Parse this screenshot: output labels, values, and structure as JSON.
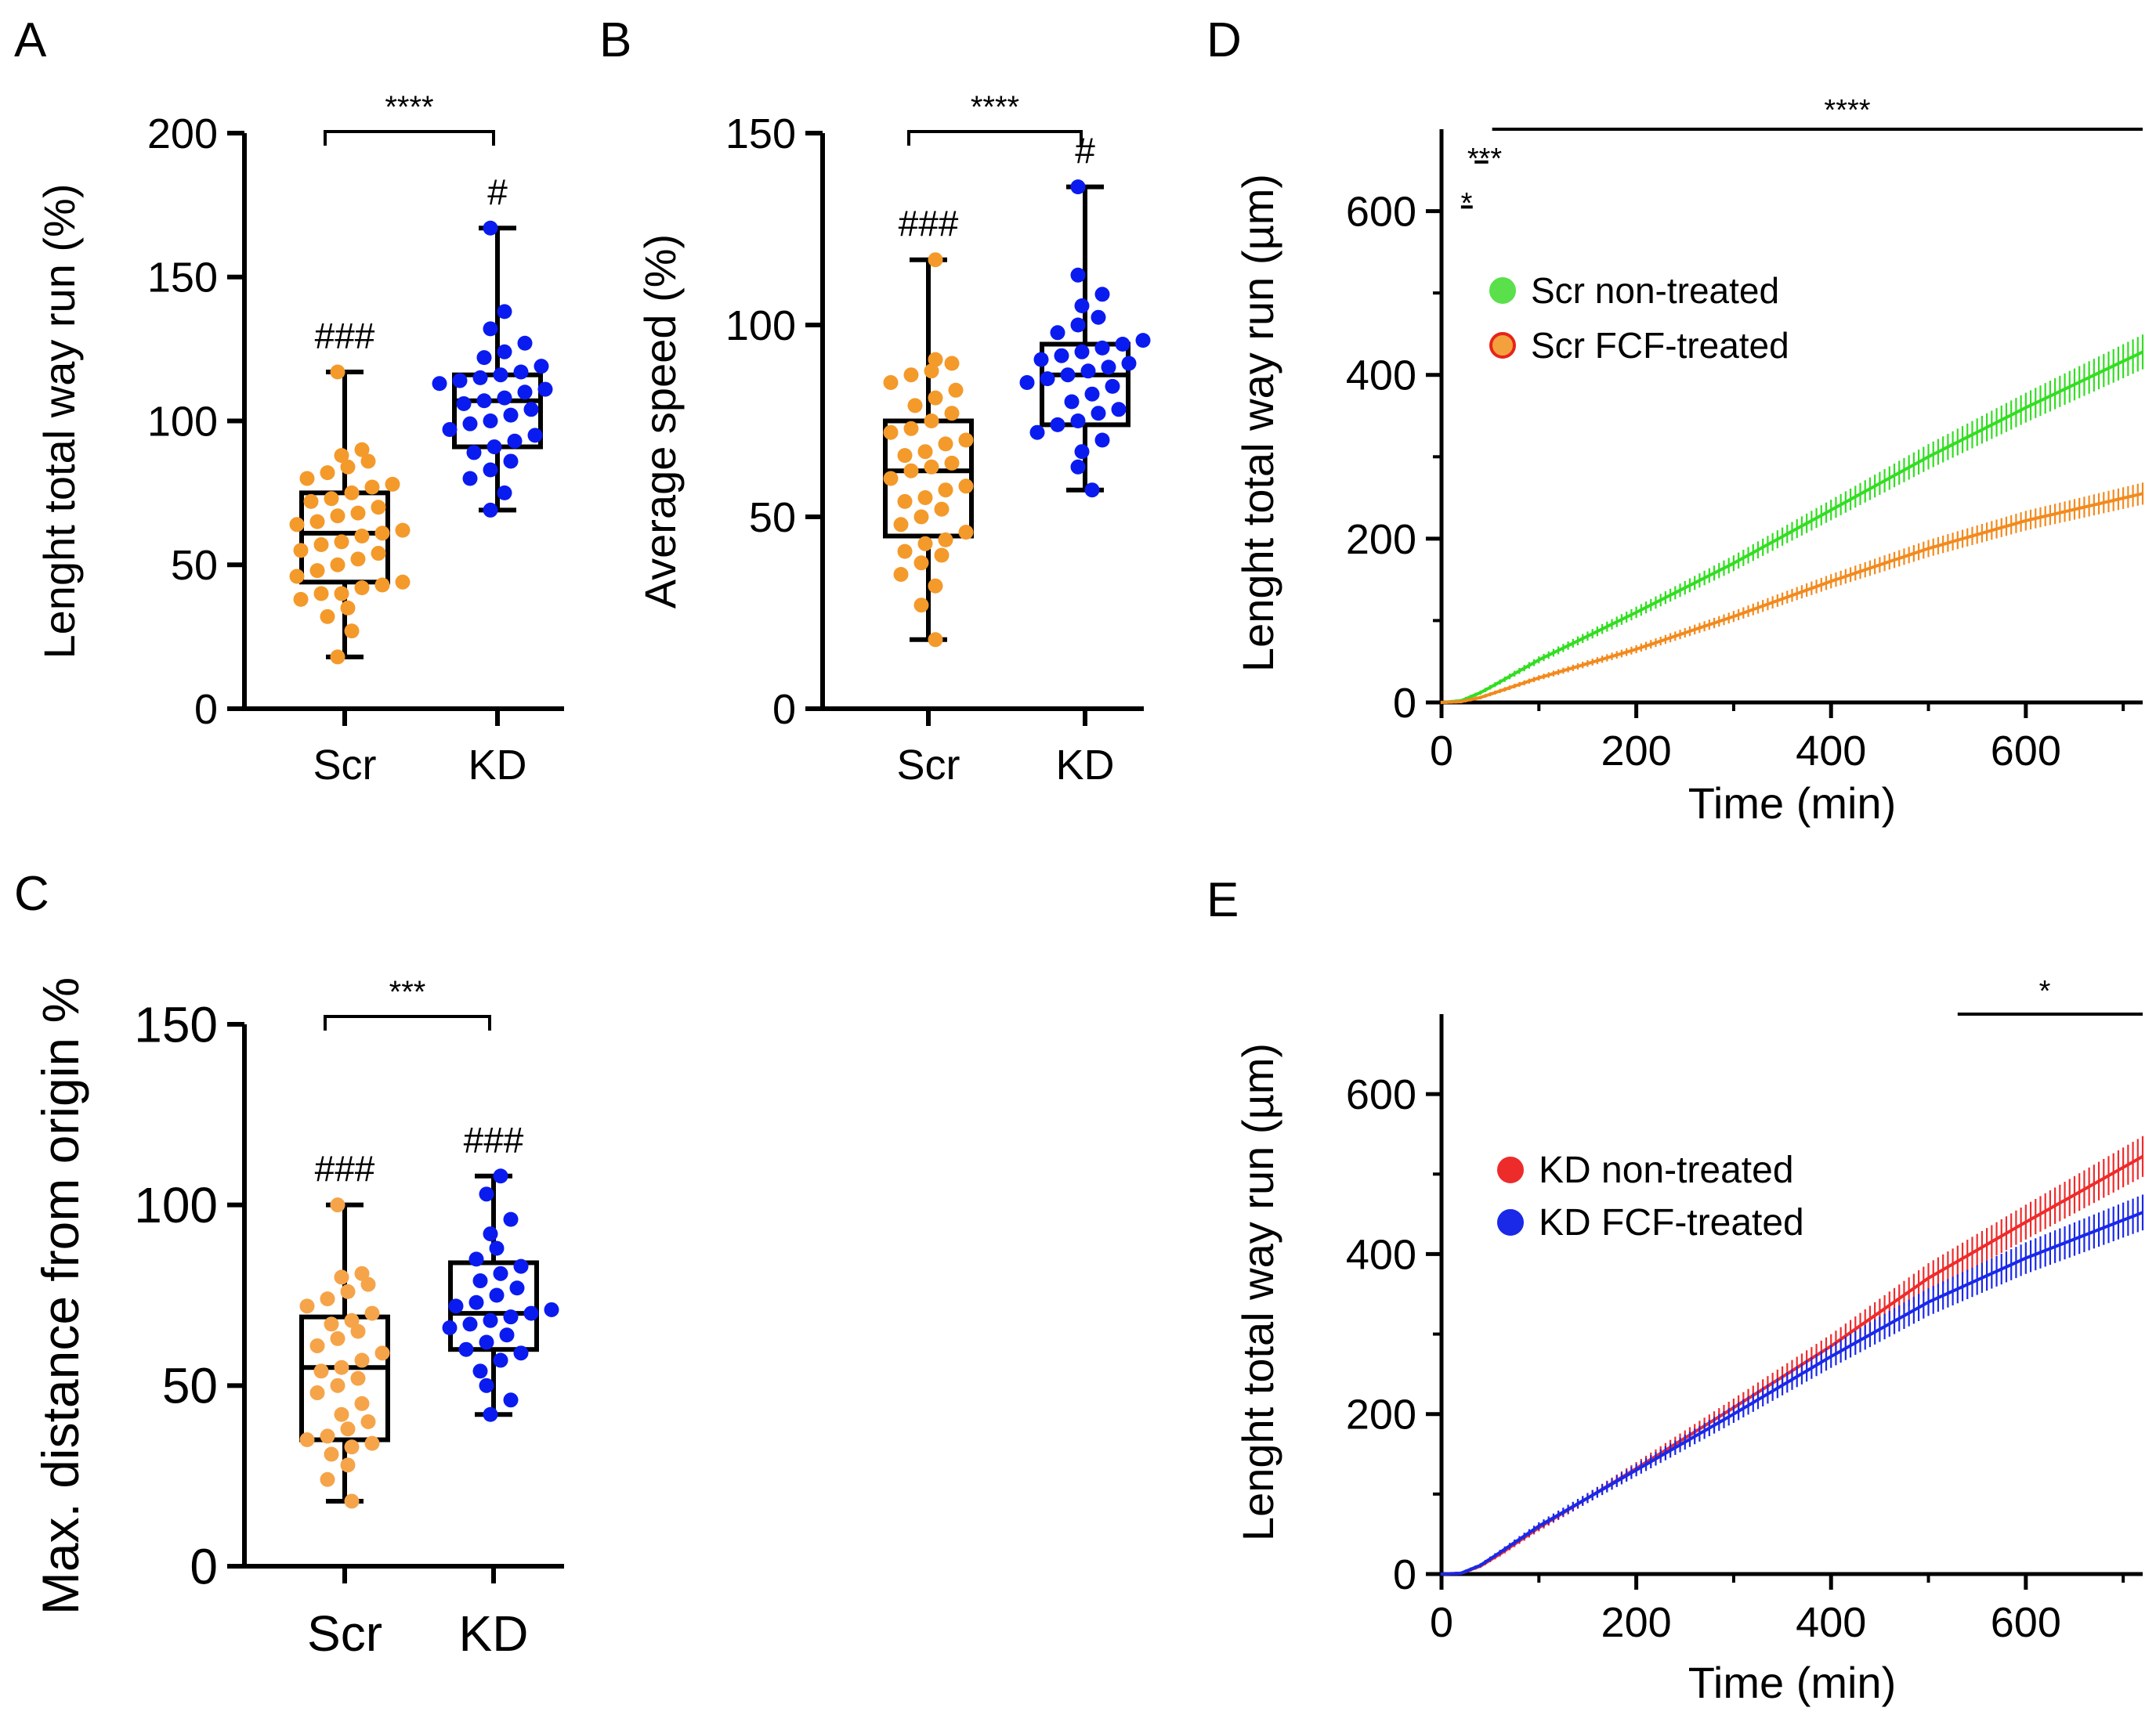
{
  "figure": {
    "panel_labels": [
      "A",
      "B",
      "C",
      "D",
      "E"
    ]
  },
  "chart_data": [
    {
      "panel": "A",
      "type": "box-scatter",
      "ylabel": "Lenght total way run (%)",
      "ylim": [
        0,
        200
      ],
      "yticks": [
        "0",
        "50",
        "100",
        "150",
        "200"
      ],
      "categories": [
        "Scr",
        "KD"
      ],
      "colors": [
        "#f39a2b",
        "#0a1bf0"
      ],
      "groups": [
        {
          "name": "Scr",
          "min": 18,
          "q1": 44,
          "median": 61,
          "q3": 75,
          "max": 117,
          "annotation": "###",
          "points": [
            18,
            27,
            32,
            35,
            38,
            40,
            40,
            42,
            43,
            44,
            46,
            48,
            50,
            52,
            54,
            55,
            57,
            58,
            60,
            61,
            62,
            64,
            65,
            67,
            68,
            70,
            72,
            73,
            75,
            77,
            78,
            80,
            82,
            84,
            86,
            88,
            90,
            117
          ]
        },
        {
          "name": "KD",
          "min": 69,
          "q1": 91,
          "median": 107,
          "q3": 116,
          "max": 167,
          "annotation": "#",
          "points": [
            69,
            75,
            80,
            83,
            86,
            89,
            91,
            93,
            95,
            97,
            99,
            100,
            102,
            104,
            106,
            107,
            108,
            110,
            111,
            113,
            114,
            115,
            116,
            117,
            119,
            122,
            124,
            127,
            132,
            138,
            167
          ]
        }
      ],
      "significance": "****"
    },
    {
      "panel": "B",
      "type": "box-scatter",
      "ylabel": "Average speed (%)",
      "ylim": [
        0,
        150
      ],
      "yticks": [
        "0",
        "50",
        "100",
        "150"
      ],
      "categories": [
        "Scr",
        "KD"
      ],
      "colors": [
        "#f39a2b",
        "#0a1bf0"
      ],
      "groups": [
        {
          "name": "Scr",
          "min": 18,
          "q1": 45,
          "median": 62,
          "q3": 75,
          "max": 117,
          "annotation": "###",
          "points": [
            18,
            27,
            32,
            35,
            38,
            40,
            41,
            43,
            44,
            46,
            48,
            50,
            52,
            54,
            55,
            57,
            58,
            60,
            62,
            63,
            64,
            66,
            67,
            69,
            70,
            72,
            73,
            75,
            77,
            79,
            81,
            83,
            85,
            87,
            88,
            90,
            91,
            117
          ]
        },
        {
          "name": "KD",
          "min": 57,
          "q1": 74,
          "median": 87,
          "q3": 95,
          "max": 136,
          "annotation": "#",
          "points": [
            57,
            63,
            67,
            70,
            72,
            74,
            75,
            77,
            78,
            80,
            82,
            84,
            85,
            86,
            87,
            88,
            89,
            90,
            91,
            92,
            93,
            94,
            95,
            96,
            98,
            100,
            102,
            105,
            108,
            113,
            136
          ]
        }
      ],
      "significance": "****"
    },
    {
      "panel": "C",
      "type": "box-scatter",
      "ylabel": "Max. distance from origin %",
      "ylim": [
        0,
        150
      ],
      "yticks": [
        "0",
        "50",
        "100",
        "150"
      ],
      "categories": [
        "Scr",
        "KD"
      ],
      "colors": [
        "#f5a44a",
        "#0a1bf0"
      ],
      "groups": [
        {
          "name": "Scr",
          "min": 18,
          "q1": 35,
          "median": 55,
          "q3": 69,
          "max": 100,
          "annotation": "###",
          "points": [
            18,
            24,
            28,
            31,
            33,
            34,
            35,
            36,
            38,
            40,
            42,
            45,
            48,
            50,
            52,
            54,
            55,
            57,
            59,
            61,
            63,
            65,
            67,
            68,
            70,
            72,
            74,
            76,
            78,
            80,
            81,
            100
          ]
        },
        {
          "name": "KD",
          "min": 42,
          "q1": 60,
          "median": 70,
          "q3": 84,
          "max": 108,
          "annotation": "###",
          "points": [
            42,
            46,
            50,
            54,
            57,
            59,
            60,
            62,
            64,
            66,
            67,
            68,
            69,
            70,
            71,
            72,
            73,
            75,
            77,
            79,
            81,
            83,
            85,
            88,
            92,
            96,
            103,
            108
          ]
        }
      ],
      "significance": "***"
    },
    {
      "panel": "D",
      "type": "line",
      "ylabel": "Lenght total way run (µm)",
      "xlabel": "Time (min)",
      "xlim": [
        0,
        720
      ],
      "ylim": [
        0,
        700
      ],
      "xticks": [
        "0",
        "200",
        "400",
        "600"
      ],
      "yticks": [
        "0",
        "200",
        "400",
        "600"
      ],
      "series": [
        {
          "name": "Scr non-treated",
          "color": "#33dd22",
          "marker": "#5ae04a",
          "marker_edge": "#5ae04a",
          "x": [
            0,
            20,
            40,
            60,
            100,
            200,
            300,
            400,
            500,
            600,
            720
          ],
          "y": [
            0,
            2,
            12,
            25,
            52,
            110,
            170,
            235,
            300,
            360,
            428
          ]
        },
        {
          "name": "Scr FCF-treated",
          "color": "#f28a1e",
          "marker": "#f3a13c",
          "marker_edge": "#e8231a",
          "x": [
            0,
            20,
            40,
            60,
            100,
            200,
            300,
            400,
            500,
            600,
            720
          ],
          "y": [
            0,
            1,
            6,
            14,
            30,
            65,
            105,
            148,
            188,
            222,
            255
          ]
        }
      ],
      "significance": [
        {
          "label": "*",
          "x_from": 20,
          "x_to": 32,
          "y": 605
        },
        {
          "label": "***",
          "x_from": 34,
          "x_to": 48,
          "y": 660
        },
        {
          "label": "****",
          "x_from": 52,
          "x_to": 720,
          "y": 700
        }
      ]
    },
    {
      "panel": "E",
      "type": "line",
      "ylabel": "Lenght total way run (µm)",
      "xlabel": "Time (min)",
      "xlim": [
        0,
        720
      ],
      "ylim": [
        0,
        700
      ],
      "xticks": [
        "0",
        "200",
        "400",
        "600"
      ],
      "yticks": [
        "0",
        "200",
        "400",
        "600"
      ],
      "series": [
        {
          "name": "KD non-treated",
          "color": "#ee2b2b",
          "marker": "#ee2b2b",
          "marker_edge": "#ee2b2b",
          "x": [
            0,
            20,
            40,
            60,
            100,
            200,
            300,
            400,
            500,
            600,
            720
          ],
          "y": [
            0,
            1,
            10,
            25,
            58,
            132,
            208,
            285,
            370,
            440,
            522
          ]
        },
        {
          "name": "KD FCF-treated",
          "color": "#1a28e8",
          "marker": "#1a28e8",
          "marker_edge": "#1a28e8",
          "x": [
            0,
            20,
            40,
            60,
            100,
            200,
            300,
            400,
            500,
            600,
            720
          ],
          "y": [
            0,
            1,
            11,
            27,
            60,
            130,
            200,
            272,
            340,
            395,
            452
          ]
        }
      ],
      "significance": [
        {
          "label": "*",
          "x_from": 530,
          "x_to": 720,
          "y": 700
        }
      ]
    }
  ]
}
